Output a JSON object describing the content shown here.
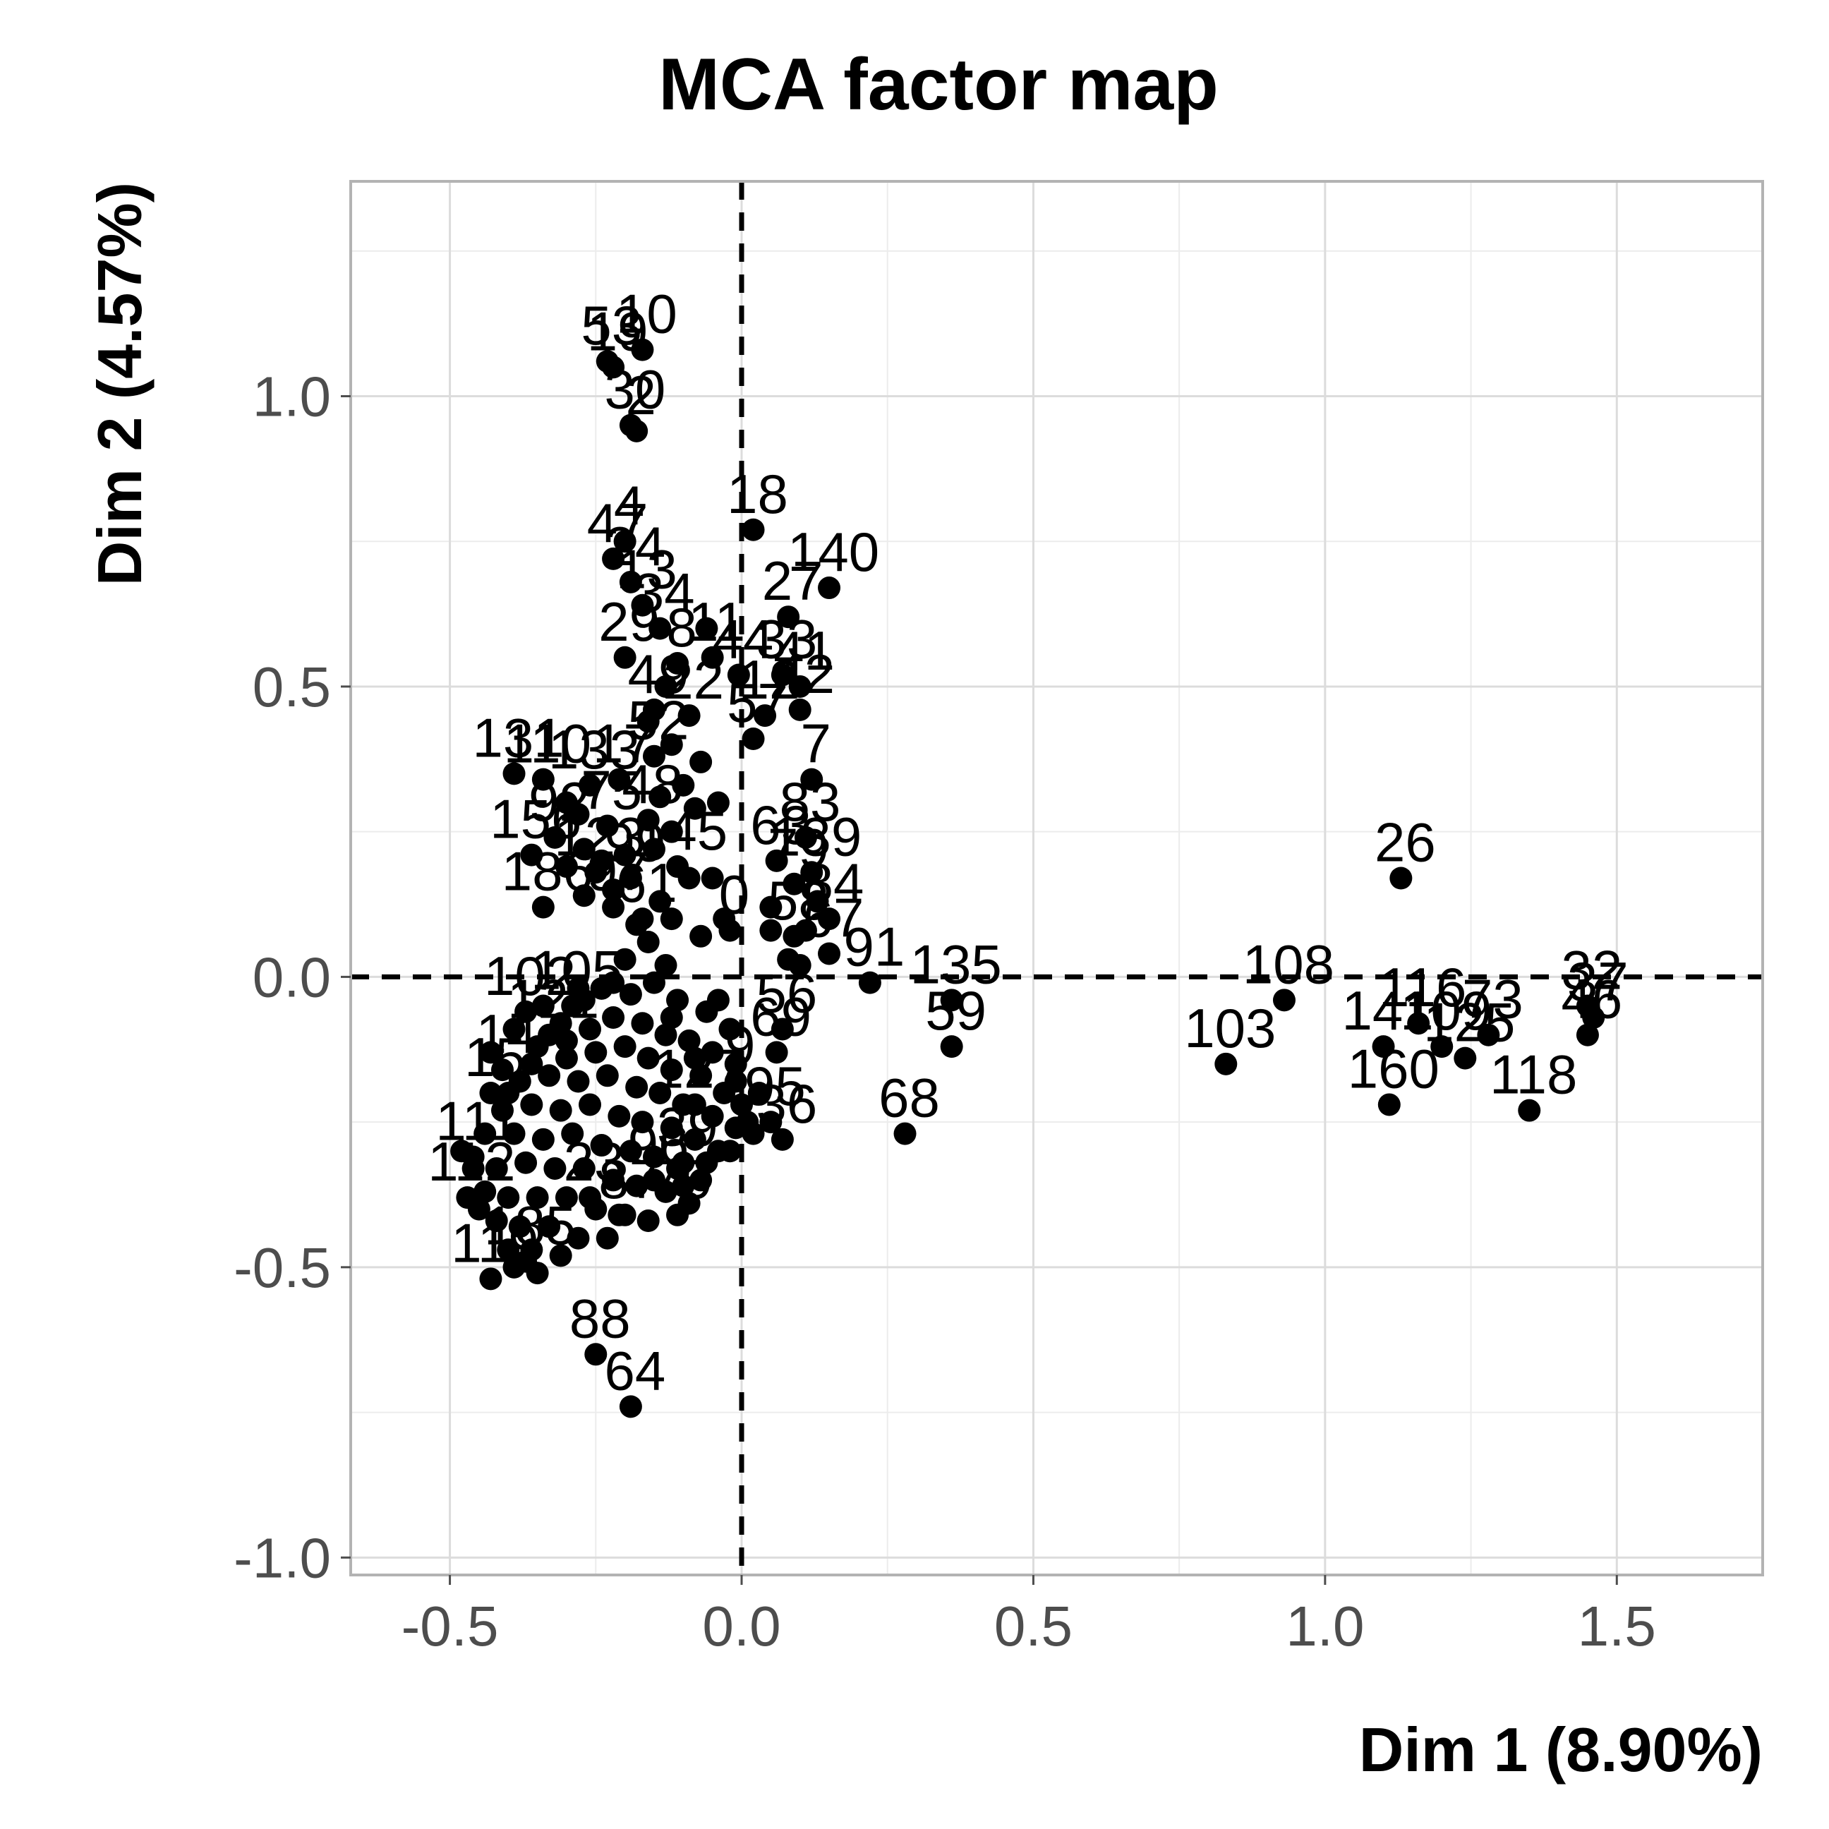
{
  "chart_data": {
    "type": "scatter",
    "title": "MCA factor map",
    "xlabel": "Dim 1 (8.90%)",
    "ylabel": "Dim 2 (4.57%)",
    "xlim": [
      -0.67,
      1.75
    ],
    "ylim": [
      -1.03,
      1.37
    ],
    "xticks": [
      -0.5,
      0.0,
      0.5,
      1.0,
      1.5
    ],
    "xtick_labels": [
      "-0.5",
      "0.0",
      "0.5",
      "1.0",
      "1.5"
    ],
    "yticks": [
      -1.0,
      -0.5,
      0.0,
      0.5,
      1.0
    ],
    "ytick_labels": [
      "-1.0",
      "-0.5",
      "0.0",
      "0.5",
      "1.0"
    ],
    "grid": true,
    "reference_lines": {
      "x": 0,
      "y": 0
    },
    "points": [
      {
        "label": "10",
        "x": -0.17,
        "y": 1.08
      },
      {
        "label": "53",
        "x": -0.23,
        "y": 1.06
      },
      {
        "label": "19",
        "x": -0.22,
        "y": 1.05
      },
      {
        "label": "30",
        "x": -0.19,
        "y": 0.95
      },
      {
        "label": "2",
        "x": -0.18,
        "y": 0.94
      },
      {
        "label": "4",
        "x": -0.2,
        "y": 0.75
      },
      {
        "label": "47",
        "x": -0.22,
        "y": 0.72
      },
      {
        "label": "24",
        "x": -0.19,
        "y": 0.68
      },
      {
        "label": "13",
        "x": -0.17,
        "y": 0.64
      },
      {
        "label": "34",
        "x": -0.14,
        "y": 0.6
      },
      {
        "label": "11",
        "x": -0.05,
        "y": 0.55
      },
      {
        "label": "29",
        "x": -0.2,
        "y": 0.55
      },
      {
        "label": "8",
        "x": -0.11,
        "y": 0.54
      },
      {
        "label": "49",
        "x": -0.15,
        "y": 0.46
      },
      {
        "label": "22",
        "x": -0.09,
        "y": 0.45
      },
      {
        "label": "131",
        "x": -0.39,
        "y": 0.35
      },
      {
        "label": "17",
        "x": -0.21,
        "y": 0.34
      },
      {
        "label": "52",
        "x": -0.15,
        "y": 0.38
      },
      {
        "label": "110",
        "x": -0.34,
        "y": 0.34
      },
      {
        "label": "133",
        "x": -0.26,
        "y": 0.33
      },
      {
        "label": "92",
        "x": -0.32,
        "y": 0.24
      },
      {
        "label": "75",
        "x": -0.23,
        "y": 0.26
      },
      {
        "label": "48",
        "x": -0.16,
        "y": 0.27
      },
      {
        "label": "156",
        "x": -0.36,
        "y": 0.21
      },
      {
        "label": "123",
        "x": -0.25,
        "y": 0.18
      },
      {
        "label": "99",
        "x": -0.19,
        "y": 0.17
      },
      {
        "label": "145",
        "x": -0.11,
        "y": 0.19
      },
      {
        "label": "97",
        "x": -0.22,
        "y": 0.12
      },
      {
        "label": "61",
        "x": -0.17,
        "y": 0.1
      },
      {
        "label": "186",
        "x": -0.34,
        "y": 0.12
      },
      {
        "label": "18",
        "x": 0.02,
        "y": 0.77
      },
      {
        "label": "140",
        "x": 0.15,
        "y": 0.67
      },
      {
        "label": "27",
        "x": 0.08,
        "y": 0.62
      },
      {
        "label": "33",
        "x": 0.07,
        "y": 0.52
      },
      {
        "label": "41",
        "x": 0.1,
        "y": 0.5
      },
      {
        "label": "44",
        "x": -0.005,
        "y": 0.52
      },
      {
        "label": "42",
        "x": 0.1,
        "y": 0.46
      },
      {
        "label": "12",
        "x": 0.04,
        "y": 0.45
      },
      {
        "label": "57",
        "x": 0.02,
        "y": 0.41
      },
      {
        "label": "7",
        "x": 0.12,
        "y": 0.34
      },
      {
        "label": "83",
        "x": 0.11,
        "y": 0.24
      },
      {
        "label": "63",
        "x": 0.06,
        "y": 0.2
      },
      {
        "label": "139",
        "x": 0.12,
        "y": 0.18
      },
      {
        "label": "79",
        "x": 0.09,
        "y": 0.16
      },
      {
        "label": "84",
        "x": 0.15,
        "y": 0.1
      },
      {
        "label": "58",
        "x": 0.09,
        "y": 0.07
      },
      {
        "label": "67",
        "x": 0.15,
        "y": 0.04
      },
      {
        "label": "0",
        "x": -0.02,
        "y": 0.08
      },
      {
        "label": "26",
        "x": 1.13,
        "y": 0.17
      },
      {
        "label": "141",
        "x": 1.1,
        "y": -0.12
      },
      {
        "label": "103",
        "x": 0.83,
        "y": -0.15
      },
      {
        "label": "108",
        "x": 0.93,
        "y": -0.04
      },
      {
        "label": "160",
        "x": 1.11,
        "y": -0.22
      },
      {
        "label": "116",
        "x": 1.16,
        "y": -0.08
      },
      {
        "label": "109",
        "x": 1.2,
        "y": -0.12
      },
      {
        "label": "125",
        "x": 1.24,
        "y": -0.14
      },
      {
        "label": "73",
        "x": 1.28,
        "y": -0.1
      },
      {
        "label": "118",
        "x": 1.35,
        "y": -0.23
      },
      {
        "label": "32",
        "x": 1.45,
        "y": -0.05
      },
      {
        "label": "37",
        "x": 1.46,
        "y": -0.07
      },
      {
        "label": "46",
        "x": 1.45,
        "y": -0.1
      },
      {
        "label": "91",
        "x": 0.22,
        "y": -0.01
      },
      {
        "label": "135",
        "x": 0.36,
        "y": -0.04
      },
      {
        "label": "59",
        "x": 0.36,
        "y": -0.12
      },
      {
        "label": "56",
        "x": 0.07,
        "y": -0.09
      },
      {
        "label": "69",
        "x": 0.06,
        "y": -0.13
      },
      {
        "label": "95",
        "x": 0.05,
        "y": -0.25
      },
      {
        "label": "36",
        "x": 0.07,
        "y": -0.28
      },
      {
        "label": "68",
        "x": 0.28,
        "y": -0.27
      },
      {
        "label": "88",
        "x": -0.25,
        "y": -0.65
      },
      {
        "label": "64",
        "x": -0.19,
        "y": -0.74
      },
      {
        "label": "119",
        "x": -0.43,
        "y": -0.52
      },
      {
        "label": "185",
        "x": -0.37,
        "y": -0.49
      },
      {
        "label": "87",
        "x": -0.2,
        "y": -0.41
      },
      {
        "label": "70",
        "x": -0.11,
        "y": -0.41
      },
      {
        "label": "23",
        "x": -0.26,
        "y": -0.38
      },
      {
        "label": "96",
        "x": -0.15,
        "y": -0.35
      },
      {
        "label": "111",
        "x": -0.46,
        "y": -0.31
      },
      {
        "label": "112",
        "x": -0.47,
        "y": -0.38
      },
      {
        "label": "15",
        "x": -0.43,
        "y": -0.2
      },
      {
        "label": "14",
        "x": -0.41,
        "y": -0.16
      },
      {
        "label": "102",
        "x": -0.37,
        "y": -0.06
      },
      {
        "label": "121",
        "x": -0.33,
        "y": -0.1
      },
      {
        "label": "105",
        "x": -0.29,
        "y": -0.05
      },
      {
        "label": "39",
        "x": -0.1,
        "y": -0.32
      },
      {
        "label": "127",
        "x": -0.08,
        "y": -0.22
      },
      {
        "label": "9",
        "x": -0.01,
        "y": -0.18
      }
    ],
    "unlabeled_points": [
      [
        -0.06,
        0.6
      ],
      [
        -0.13,
        0.5
      ],
      [
        -0.16,
        0.44
      ],
      [
        -0.12,
        0.4
      ],
      [
        -0.07,
        0.37
      ],
      [
        -0.1,
        0.33
      ],
      [
        -0.14,
        0.31
      ],
      [
        -0.3,
        0.3
      ],
      [
        -0.28,
        0.28
      ],
      [
        -0.08,
        0.29
      ],
      [
        -0.04,
        0.3
      ],
      [
        -0.12,
        0.25
      ],
      [
        -0.27,
        0.22
      ],
      [
        -0.3,
        0.19
      ],
      [
        -0.24,
        0.2
      ],
      [
        -0.2,
        0.21
      ],
      [
        -0.15,
        0.22
      ],
      [
        -0.09,
        0.17
      ],
      [
        -0.05,
        0.17
      ],
      [
        -0.14,
        0.13
      ],
      [
        -0.22,
        0.15
      ],
      [
        -0.27,
        0.14
      ],
      [
        -0.18,
        0.09
      ],
      [
        -0.12,
        0.1
      ],
      [
        -0.07,
        0.07
      ],
      [
        -0.03,
        0.1
      ],
      [
        -0.16,
        0.06
      ],
      [
        -0.2,
        0.03
      ],
      [
        -0.13,
        0.02
      ],
      [
        0.05,
        0.12
      ],
      [
        0.05,
        0.08
      ],
      [
        0.08,
        0.03
      ],
      [
        0.1,
        0.02
      ],
      [
        0.11,
        0.08
      ],
      [
        0.13,
        0.13
      ],
      [
        -0.24,
        -0.02
      ],
      [
        -0.19,
        -0.03
      ],
      [
        -0.15,
        -0.01
      ],
      [
        -0.11,
        -0.04
      ],
      [
        -0.06,
        -0.06
      ],
      [
        -0.02,
        -0.09
      ],
      [
        -0.27,
        -0.04
      ],
      [
        -0.31,
        -0.08
      ],
      [
        -0.26,
        -0.09
      ],
      [
        -0.22,
        -0.07
      ],
      [
        -0.17,
        -0.08
      ],
      [
        -0.13,
        -0.1
      ],
      [
        -0.09,
        -0.11
      ],
      [
        -0.05,
        -0.13
      ],
      [
        -0.01,
        -0.15
      ],
      [
        -0.35,
        -0.12
      ],
      [
        -0.3,
        -0.14
      ],
      [
        -0.25,
        -0.13
      ],
      [
        -0.2,
        -0.12
      ],
      [
        -0.16,
        -0.14
      ],
      [
        -0.12,
        -0.16
      ],
      [
        -0.07,
        -0.17
      ],
      [
        -0.03,
        -0.2
      ],
      [
        -0.38,
        -0.18
      ],
      [
        -0.33,
        -0.17
      ],
      [
        -0.28,
        -0.18
      ],
      [
        -0.23,
        -0.17
      ],
      [
        -0.18,
        -0.19
      ],
      [
        -0.14,
        -0.2
      ],
      [
        -0.1,
        -0.22
      ],
      [
        -0.05,
        -0.24
      ],
      [
        -0.01,
        -0.26
      ],
      [
        0.03,
        -0.2
      ],
      [
        -0.41,
        -0.23
      ],
      [
        -0.36,
        -0.22
      ],
      [
        -0.31,
        -0.23
      ],
      [
        -0.26,
        -0.22
      ],
      [
        -0.21,
        -0.24
      ],
      [
        -0.17,
        -0.25
      ],
      [
        -0.12,
        -0.26
      ],
      [
        -0.08,
        -0.28
      ],
      [
        -0.04,
        -0.3
      ],
      [
        -0.44,
        -0.27
      ],
      [
        -0.39,
        -0.27
      ],
      [
        -0.34,
        -0.28
      ],
      [
        -0.29,
        -0.27
      ],
      [
        -0.24,
        -0.29
      ],
      [
        -0.19,
        -0.3
      ],
      [
        -0.15,
        -0.31
      ],
      [
        -0.11,
        -0.33
      ],
      [
        -0.07,
        -0.35
      ],
      [
        -0.46,
        -0.33
      ],
      [
        -0.42,
        -0.33
      ],
      [
        -0.37,
        -0.32
      ],
      [
        -0.32,
        -0.33
      ],
      [
        -0.27,
        -0.33
      ],
      [
        -0.22,
        -0.35
      ],
      [
        -0.18,
        -0.36
      ],
      [
        -0.13,
        -0.37
      ],
      [
        -0.09,
        -0.39
      ],
      [
        -0.44,
        -0.37
      ],
      [
        -0.4,
        -0.38
      ],
      [
        -0.35,
        -0.38
      ],
      [
        -0.3,
        -0.38
      ],
      [
        -0.25,
        -0.4
      ],
      [
        -0.21,
        -0.41
      ],
      [
        -0.16,
        -0.42
      ],
      [
        -0.42,
        -0.42
      ],
      [
        -0.38,
        -0.43
      ],
      [
        -0.33,
        -0.43
      ],
      [
        -0.28,
        -0.45
      ],
      [
        -0.23,
        -0.45
      ],
      [
        -0.4,
        -0.47
      ],
      [
        -0.36,
        -0.47
      ],
      [
        -0.31,
        -0.48
      ],
      [
        -0.35,
        -0.51
      ],
      [
        -0.39,
        -0.5
      ],
      [
        -0.45,
        -0.4
      ],
      [
        -0.48,
        -0.3
      ],
      [
        -0.43,
        -0.13
      ],
      [
        -0.39,
        -0.09
      ],
      [
        -0.34,
        -0.05
      ],
      [
        -0.28,
        -0.02
      ],
      [
        -0.22,
        -0.01
      ],
      [
        -0.3,
        -0.11
      ],
      [
        -0.36,
        -0.15
      ],
      [
        -0.4,
        -0.2
      ],
      [
        0.0,
        -0.22
      ],
      [
        0.01,
        -0.25
      ],
      [
        0.02,
        -0.27
      ],
      [
        -0.02,
        -0.3
      ],
      [
        -0.06,
        -0.32
      ],
      [
        -0.1,
        -0.36
      ],
      [
        -0.08,
        -0.14
      ],
      [
        -0.12,
        -0.07
      ],
      [
        -0.04,
        -0.04
      ]
    ]
  }
}
